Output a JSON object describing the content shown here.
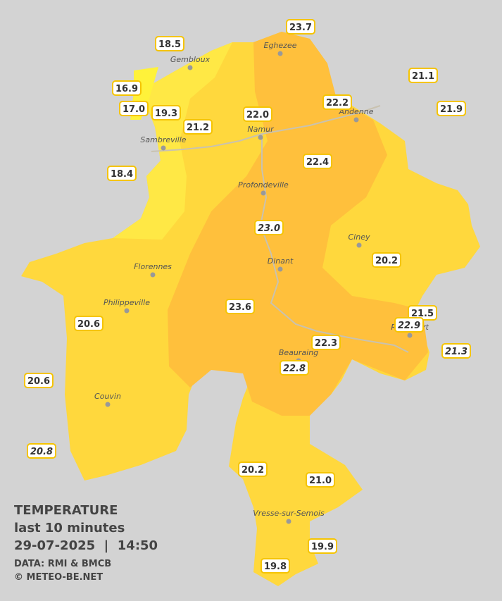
{
  "map": {
    "legend": {
      "title": "TEMPERATURE",
      "subtitle": "last 10 minutes",
      "datetime": "29-07-2025  |  14:50",
      "source": "DATA: RMI & BMCB",
      "copyright": "© METEO-BE.NET"
    },
    "cities": [
      "Eghezee",
      "Gembloux",
      "Andenne",
      "Namur",
      "Sambreville",
      "Profondeville",
      "Ciney",
      "Dinant",
      "Florennes",
      "Philippeville",
      "Rochefort",
      "Beauraing",
      "Couvin",
      "Vresse-sur-Semois"
    ],
    "stations": [
      {
        "label": "23.7"
      },
      {
        "label": "18.5"
      },
      {
        "label": "21.1"
      },
      {
        "label": "16.9"
      },
      {
        "label": "22.2"
      },
      {
        "label": "17.0"
      },
      {
        "label": "19.3"
      },
      {
        "label": "22.0"
      },
      {
        "label": "21.9"
      },
      {
        "label": "21.2"
      },
      {
        "label": "22.4"
      },
      {
        "label": "18.4"
      },
      {
        "label": "23.0",
        "italic": true
      },
      {
        "label": "20.2"
      },
      {
        "label": "23.6"
      },
      {
        "label": "20.6"
      },
      {
        "label": "21.5"
      },
      {
        "label": "22.9",
        "italic": true
      },
      {
        "label": "22.3"
      },
      {
        "label": "21.3",
        "italic": true
      },
      {
        "label": "22.8",
        "italic": true
      },
      {
        "label": "20.6"
      },
      {
        "label": "20.8",
        "italic": true
      },
      {
        "label": "20.2"
      },
      {
        "label": "21.0"
      },
      {
        "label": "19.9"
      },
      {
        "label": "19.8"
      }
    ]
  }
}
